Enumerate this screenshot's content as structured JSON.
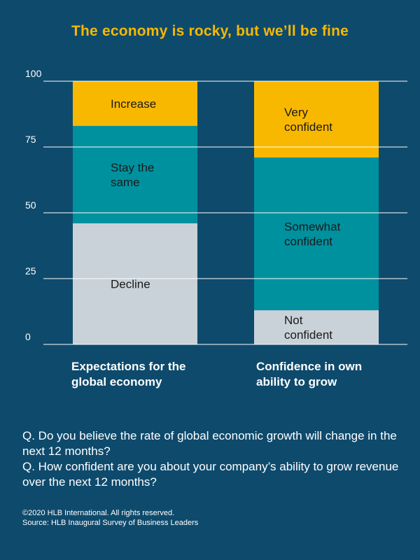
{
  "title": "The economy is rocky, but we’ll be fine",
  "chart_data": {
    "type": "stacked-bar",
    "yticks": [
      "100",
      "75",
      "50",
      "25",
      "0"
    ],
    "ylim": [
      0,
      100
    ],
    "grid": true,
    "colors": {
      "top": "#f9b800",
      "middle": "#00919f",
      "bottom": "#c9d2d9"
    },
    "bars": [
      {
        "category": "Expectations for the global economy",
        "category_lines": [
          "Expectations for the",
          "global economy"
        ],
        "segments": [
          {
            "label_lines": [
              "Decline"
            ],
            "value": 46,
            "color": "#c9d2d9"
          },
          {
            "label_lines": [
              "Stay the",
              "same"
            ],
            "value": 37,
            "color": "#00919f"
          },
          {
            "label_lines": [
              "Increase"
            ],
            "value": 17,
            "color": "#f9b800"
          }
        ]
      },
      {
        "category": "Confidence in own ability to grow",
        "category_lines": [
          "Confidence in own",
          "ability to grow"
        ],
        "segments": [
          {
            "label_lines": [
              "Not",
              "confident"
            ],
            "value": 13,
            "color": "#c9d2d9"
          },
          {
            "label_lines": [
              "Somewhat",
              "confident"
            ],
            "value": 58,
            "color": "#00919f"
          },
          {
            "label_lines": [
              "Very",
              "confident"
            ],
            "value": 29,
            "color": "#f9b800"
          }
        ]
      }
    ]
  },
  "questions": {
    "q1": "Q. Do you believe the rate of global economic growth will change in the next 12 months?",
    "q2": "Q. How confident are you about your company’s ability to grow revenue over the next 12 months?"
  },
  "footer": {
    "copyright": "©2020 HLB International. All rights reserved.",
    "source": "Source: HLB Inaugural Survey of Business Leaders"
  }
}
